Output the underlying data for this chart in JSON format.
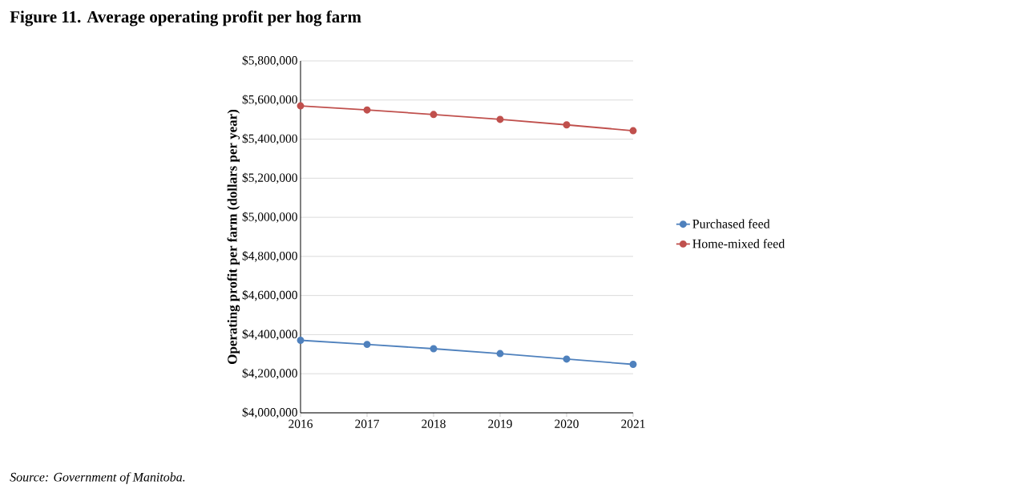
{
  "chart_data": {
    "type": "line",
    "title": "Figure 11. Average operating profit per hog farm",
    "ylabel": "Operating profit per farm (dollars per year)",
    "annotations": [
      "Source: Government of Manitoba."
    ],
    "categories": [
      "2016",
      "2017",
      "2018",
      "2019",
      "2020",
      "2021"
    ],
    "series": [
      {
        "name": "Purchased feed",
        "color": "#4f81bd",
        "values": [
          4371000,
          4350000,
          4328000,
          4303000,
          4275000,
          4248000
        ]
      },
      {
        "name": "Home-mixed feed",
        "color": "#c0504d",
        "values": [
          5570000,
          5549000,
          5526000,
          5501000,
          5473000,
          5443000
        ]
      }
    ],
    "ylim": [
      4000000,
      5800000
    ],
    "yticks": [
      {
        "value": 4000000,
        "label": "$4,000,000"
      },
      {
        "value": 4200000,
        "label": "$4,200,000"
      },
      {
        "value": 4400000,
        "label": "$4,400,000"
      },
      {
        "value": 4600000,
        "label": "$4,600,000"
      },
      {
        "value": 4800000,
        "label": "$4,800,000"
      },
      {
        "value": 5000000,
        "label": "$5,000,000"
      },
      {
        "value": 5200000,
        "label": "$5,200,000"
      },
      {
        "value": 5400000,
        "label": "$5,400,000"
      },
      {
        "value": 5600000,
        "label": "$5,600,000"
      },
      {
        "value": 5800000,
        "label": "$5,800,000"
      }
    ],
    "grid": "y",
    "legend": "right",
    "marker": "circle"
  }
}
